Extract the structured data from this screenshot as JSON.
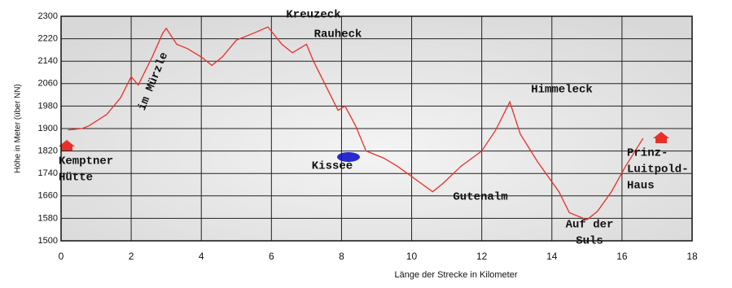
{
  "chart_data": {
    "type": "line",
    "ylabel": "Höhe in Meter (über NN)",
    "xlabel": "Länge der Strecke in Kilometer",
    "xlim": [
      0,
      18
    ],
    "xticks": [
      0,
      2,
      4,
      6,
      8,
      10,
      12,
      14,
      16,
      18
    ],
    "ylim": [
      1500,
      2300
    ],
    "yticks": [
      1500,
      1580,
      1660,
      1740,
      1820,
      1900,
      1980,
      2060,
      2140,
      2220,
      2300
    ],
    "grid": true,
    "series": [
      {
        "color": "#e8302a",
        "x": [
          0.2,
          0.6,
          0.8,
          1.3,
          1.7,
          2.0,
          2.2,
          2.6,
          2.9,
          3.0,
          3.3,
          3.6,
          4.0,
          4.3,
          4.6,
          5.0,
          5.5,
          5.9,
          6.3,
          6.6,
          7.0,
          7.2,
          7.6,
          7.9,
          8.1,
          8.4,
          8.7,
          9.2,
          9.6,
          10.1,
          10.6,
          10.9,
          11.4,
          12.0,
          12.4,
          12.8,
          13.1,
          13.6,
          14.2,
          14.5,
          15.0,
          15.3,
          15.7,
          16.1,
          16.6
        ],
        "values": [
          1895,
          1900,
          1910,
          1950,
          2010,
          2085,
          2055,
          2155,
          2240,
          2257,
          2200,
          2185,
          2155,
          2125,
          2155,
          2215,
          2240,
          2262,
          2200,
          2170,
          2200,
          2140,
          2040,
          1965,
          1980,
          1910,
          1820,
          1795,
          1765,
          1720,
          1675,
          1705,
          1765,
          1820,
          1895,
          1995,
          1880,
          1780,
          1675,
          1600,
          1575,
          1605,
          1675,
          1765,
          1865
        ]
      }
    ],
    "annotations": [
      [
        "Kreuzeck"
      ],
      [
        "Rauheck"
      ],
      [
        "im Mürzle"
      ],
      [
        "Kemptner",
        "Hütte"
      ],
      [
        "Kissee"
      ],
      [
        "Himmeleck"
      ],
      [
        "Gutenalm"
      ],
      [
        "Auf der",
        "Suls"
      ],
      [
        "Prinz-",
        "Luitpold-",
        "Haus"
      ]
    ]
  }
}
